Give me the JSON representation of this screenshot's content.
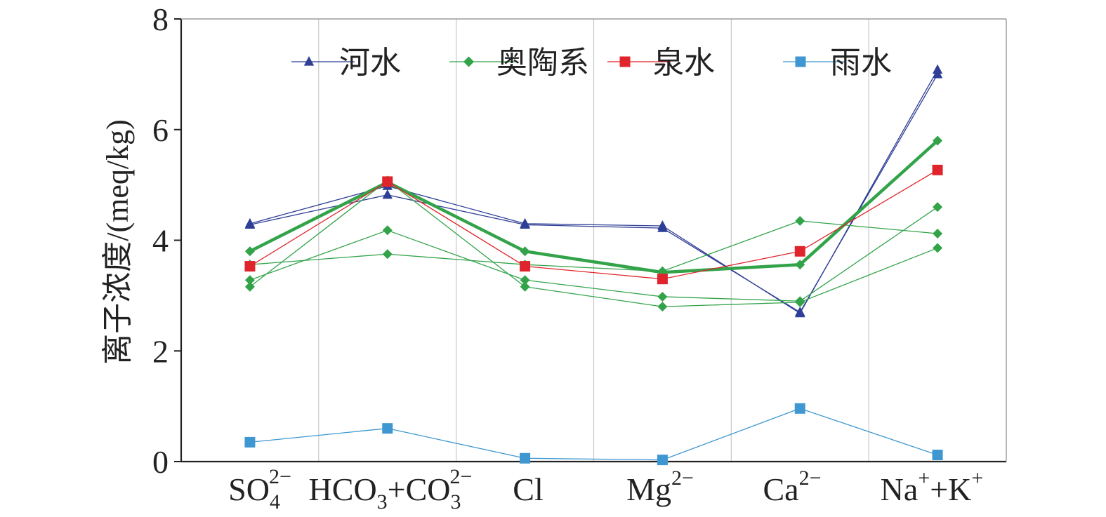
{
  "chart_data": {
    "type": "line",
    "ylabel": "离子浓度/(meq/kg)",
    "ylim": [
      0,
      8
    ],
    "yticks": [
      "0",
      "2",
      "4",
      "6",
      "8"
    ],
    "categories": [
      {
        "base": "SO",
        "sub": "4",
        "sup": "2−"
      },
      {
        "base": "HCO",
        "sub": "3",
        "mid": "+CO",
        "sub2": "3",
        "sup2": "2−"
      },
      {
        "base": "Cl"
      },
      {
        "base": "Mg",
        "sup": "2−"
      },
      {
        "base": "Ca",
        "sup": "2−"
      },
      {
        "base": "Na",
        "sup": "+",
        "mid": "+K",
        "sup2": "+"
      }
    ],
    "grid": "vertical",
    "legend_position": "top",
    "legend": [
      {
        "name": "河水",
        "marker": "triangle",
        "color": "#2f3f96"
      },
      {
        "name": "奥陶系",
        "marker": "diamond",
        "color": "#33a34a"
      },
      {
        "name": "泉水",
        "marker": "square",
        "color": "#e0242b"
      },
      {
        "name": "雨水",
        "marker": "square",
        "color": "#3e97d1"
      }
    ],
    "series": [
      {
        "group": "河水",
        "values": [
          4.28,
          4.82,
          4.28,
          4.22,
          2.7,
          7.0
        ]
      },
      {
        "group": "河水",
        "values": [
          4.3,
          4.98,
          4.3,
          4.26,
          2.68,
          7.08
        ]
      },
      {
        "group": "奥陶系",
        "values": [
          3.28,
          4.18,
          3.28,
          2.98,
          2.9,
          4.6
        ]
      },
      {
        "group": "奥陶系",
        "values": [
          3.16,
          5.08,
          3.16,
          2.8,
          2.88,
          3.86
        ]
      },
      {
        "group": "奥陶系",
        "values": [
          3.56,
          3.75,
          3.56,
          3.44,
          4.35,
          4.12
        ]
      },
      {
        "group": "奥陶系",
        "values": [
          3.8,
          5.05,
          3.8,
          3.42,
          3.56,
          5.8
        ],
        "mean": true
      },
      {
        "group": "泉水",
        "values": [
          3.53,
          5.06,
          3.53,
          3.3,
          3.8,
          5.27
        ]
      },
      {
        "group": "雨水",
        "values": [
          0.35,
          0.6,
          0.06,
          0.03,
          0.96,
          0.12
        ]
      }
    ]
  }
}
